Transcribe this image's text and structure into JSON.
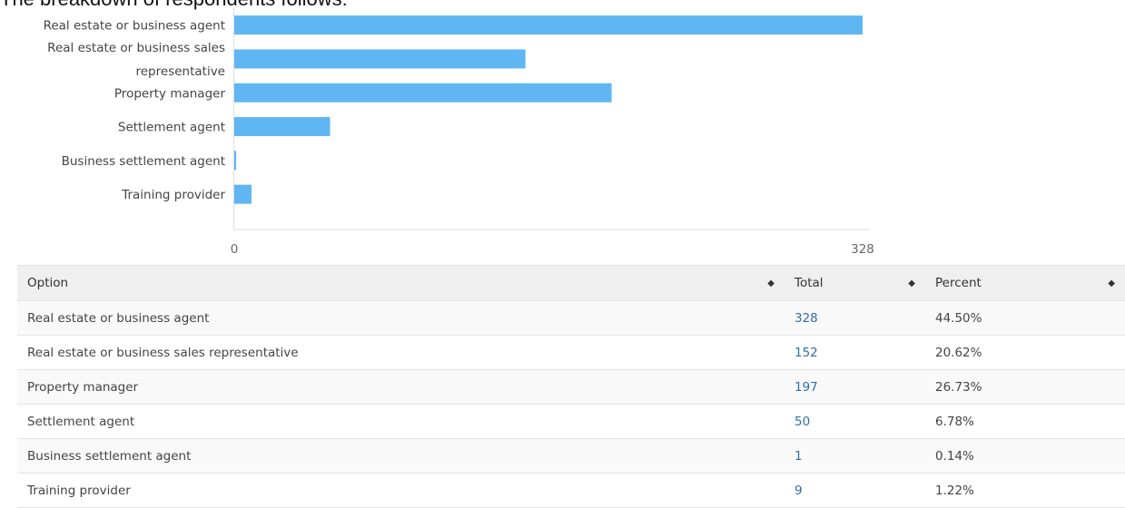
{
  "heading": "The breakdown of respondents follows:",
  "chart_data": {
    "type": "bar",
    "orientation": "horizontal",
    "categories": [
      [
        "Real estate or business agent"
      ],
      [
        "Real estate or business sales",
        "representative"
      ],
      [
        "Property manager"
      ],
      [
        "Settlement agent"
      ],
      [
        "Business settlement agent"
      ],
      [
        "Training provider"
      ]
    ],
    "values": [
      328,
      152,
      197,
      50,
      1,
      9
    ],
    "xlim": [
      0,
      328
    ],
    "xticks": [
      "0",
      "328"
    ],
    "bar_color": "#5fb6f2",
    "grid": false
  },
  "table": {
    "headers": [
      {
        "label": "Option",
        "sortable": true
      },
      {
        "label": "Total",
        "sortable": true
      },
      {
        "label": "Percent",
        "sortable": true
      }
    ],
    "rows": [
      {
        "option": "Real estate or business agent",
        "total": "328",
        "percent": "44.50%"
      },
      {
        "option": "Real estate or business sales representative",
        "total": "152",
        "percent": "20.62%"
      },
      {
        "option": "Property manager",
        "total": "197",
        "percent": "26.73%"
      },
      {
        "option": "Settlement agent",
        "total": "50",
        "percent": "6.78%"
      },
      {
        "option": "Business settlement agent",
        "total": "1",
        "percent": "0.14%"
      },
      {
        "option": "Training provider",
        "total": "9",
        "percent": "1.22%"
      }
    ],
    "total_link_color": "#2f6fa8",
    "sort_icon": "sort-both-icon"
  }
}
